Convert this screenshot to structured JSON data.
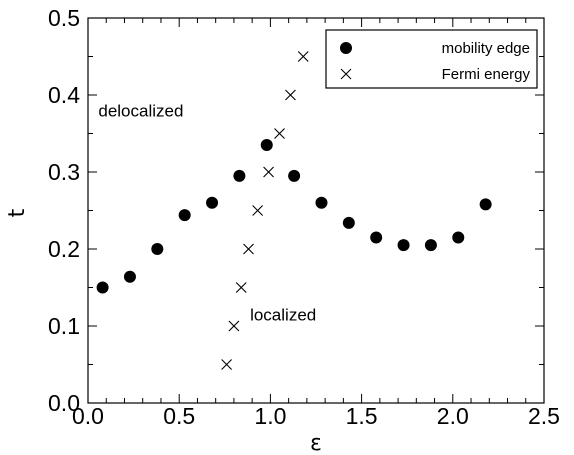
{
  "chart_data": {
    "type": "scatter",
    "title": "",
    "xlabel": "ε",
    "ylabel": "t",
    "xlim": [
      0.0,
      2.5
    ],
    "ylim": [
      0.0,
      0.5
    ],
    "x_ticks": [
      "0.0",
      "0.5",
      "1.0",
      "1.5",
      "2.0",
      "2.5"
    ],
    "y_ticks": [
      "0.0",
      "0.1",
      "0.2",
      "0.3",
      "0.4",
      "0.5"
    ],
    "grid": false,
    "legend_position": "top-right",
    "series": [
      {
        "name": "mobility edge",
        "marker": "filled-circle",
        "color": "#000000",
        "x": [
          0.08,
          0.23,
          0.38,
          0.53,
          0.68,
          0.83,
          0.98,
          1.13,
          1.28,
          1.43,
          1.58,
          1.73,
          1.88,
          2.03,
          2.18
        ],
        "y": [
          0.15,
          0.164,
          0.2,
          0.244,
          0.26,
          0.295,
          0.335,
          0.295,
          0.26,
          0.234,
          0.215,
          0.205,
          0.205,
          0.215,
          0.258
        ]
      },
      {
        "name": "Fermi energy",
        "marker": "x",
        "color": "#000000",
        "x": [
          0.76,
          0.8,
          0.84,
          0.88,
          0.93,
          0.99,
          1.05,
          1.11,
          1.18
        ],
        "y": [
          0.05,
          0.1,
          0.15,
          0.2,
          0.25,
          0.3,
          0.35,
          0.4,
          0.45
        ]
      }
    ],
    "annotations": [
      {
        "text": "delocalized",
        "x": 0.29,
        "y": 0.38
      },
      {
        "text": "localized",
        "x": 1.07,
        "y": 0.115
      }
    ]
  }
}
